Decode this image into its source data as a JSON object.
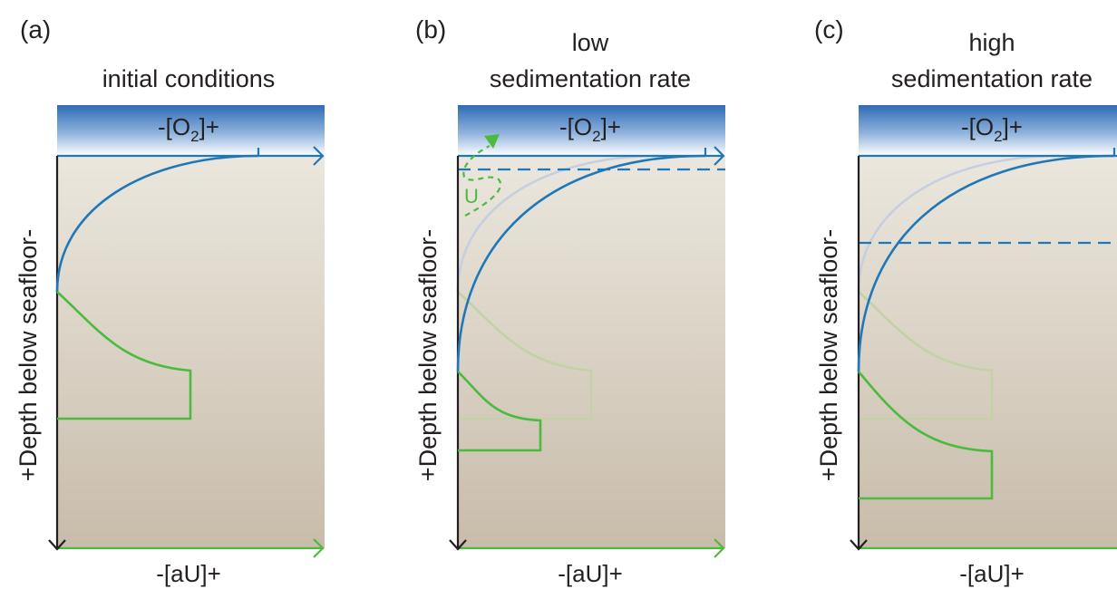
{
  "colors": {
    "oxygen": "#1f77b8",
    "uranium": "#4cba3f",
    "oxygen_ghost": "#c6cee0",
    "uranium_ghost": "#c3d2a6",
    "sediment_top": "#ebe7de",
    "sediment_bottom": "#c8bcaa",
    "water_top": "#2f6bb5",
    "axis": "#231f20"
  },
  "panels": [
    {
      "id": "a",
      "letter": "(a)",
      "title_line1": "",
      "title_line2": "initial conditions",
      "top_axis_label_prefix": "-[O",
      "top_axis_label_sub": "2",
      "top_axis_label_suffix": "]+",
      "y_axis_label": "+Depth below seafloor-",
      "bottom_axis_label": "-[aU]+"
    },
    {
      "id": "b",
      "letter": "(b)",
      "title_line1": "low",
      "title_line2": "sedimentation rate",
      "top_axis_label_prefix": "-[O",
      "top_axis_label_sub": "2",
      "top_axis_label_suffix": "]+",
      "y_axis_label": "+Depth below seafloor-",
      "bottom_axis_label": "-[aU]+",
      "flux_label": "U"
    },
    {
      "id": "c",
      "letter": "(c)",
      "title_line1": "high",
      "title_line2": "sedimentation rate",
      "top_axis_label_prefix": "-[O",
      "top_axis_label_sub": "2",
      "top_axis_label_suffix": "]+",
      "y_axis_label": "+Depth below seafloor-",
      "bottom_axis_label": "-[aU]+"
    }
  ]
}
